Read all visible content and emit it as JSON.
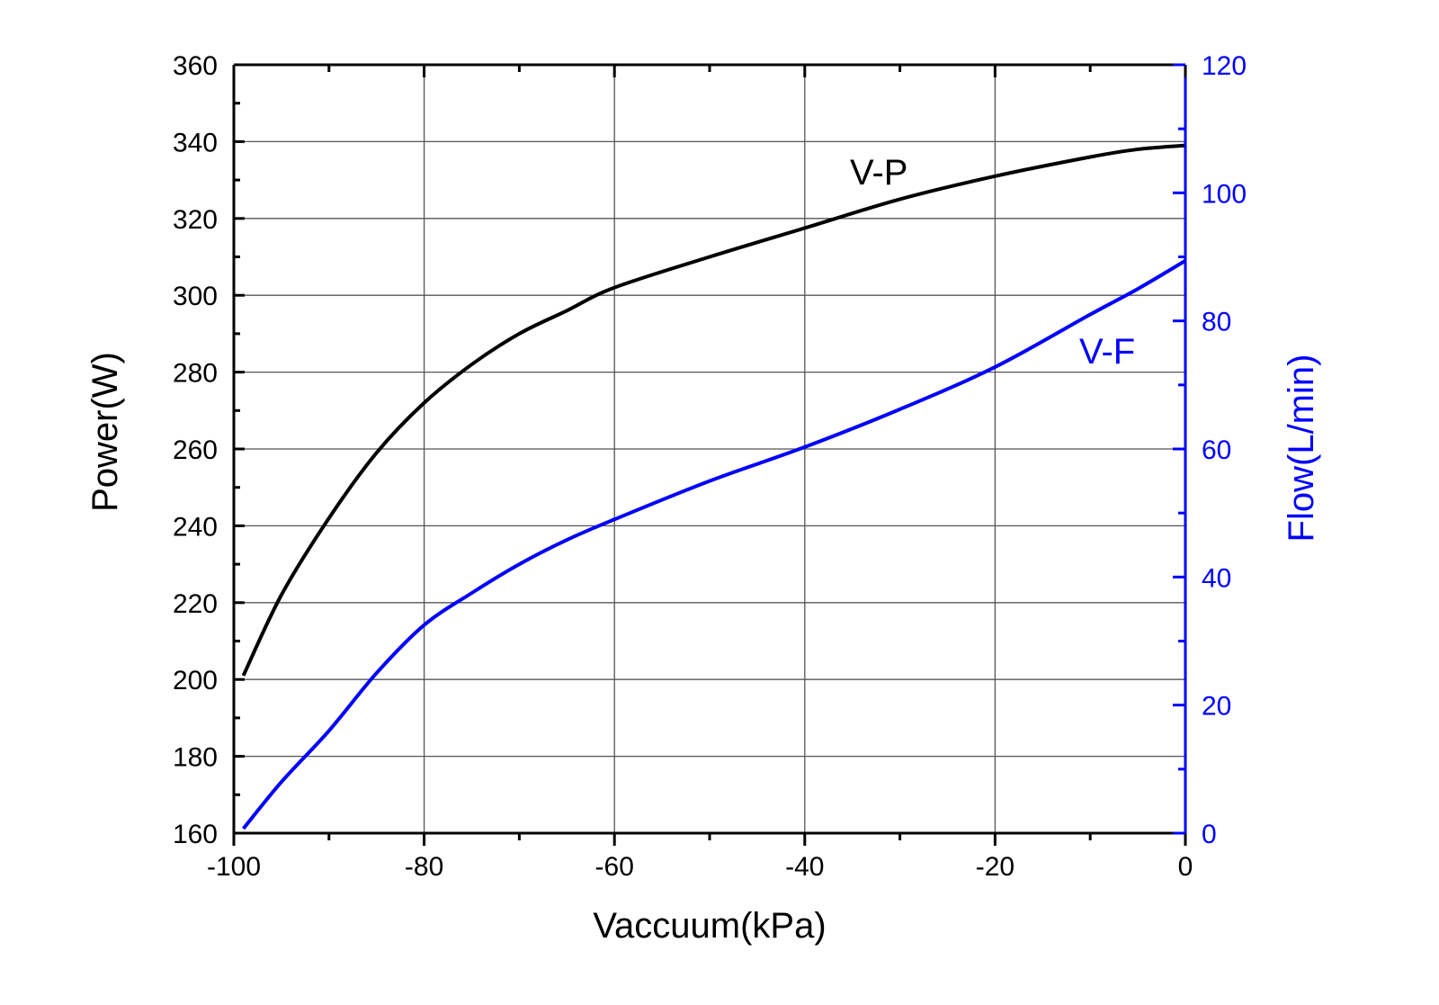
{
  "chart_data": {
    "type": "line",
    "xlabel": "Vaccuum(kPa)",
    "ylabel": "Power(W)",
    "y2label": "Flow(L/min)",
    "xlim": [
      -100,
      0
    ],
    "ylim": [
      160,
      360
    ],
    "y2lim": [
      0,
      120
    ],
    "xticks": [
      -100,
      -80,
      -60,
      -40,
      -20,
      0
    ],
    "yticks": [
      160,
      180,
      200,
      220,
      240,
      260,
      280,
      300,
      320,
      340,
      360
    ],
    "y2ticks": [
      0,
      20,
      40,
      60,
      80,
      100,
      120
    ],
    "grid": true,
    "colors": {
      "left": "#000000",
      "right": "#0000ff",
      "grid": "#555555"
    },
    "series": [
      {
        "name": "V-P",
        "axis": "left",
        "color": "#000000",
        "x": [
          -99,
          -95,
          -90,
          -85,
          -80,
          -75,
          -70,
          -65,
          -60,
          -50,
          -40,
          -30,
          -20,
          -10,
          -5,
          0
        ],
        "y": [
          201,
          222,
          242,
          259,
          272,
          282,
          290,
          296,
          302,
          310,
          317.5,
          325,
          331,
          336,
          338,
          339
        ]
      },
      {
        "name": "V-F",
        "axis": "right",
        "color": "#0000ff",
        "x": [
          -99,
          -95,
          -90,
          -85,
          -80,
          -75,
          -70,
          -65,
          -60,
          -50,
          -40,
          -30,
          -20,
          -10,
          -5,
          0
        ],
        "y": [
          0.7,
          8,
          16,
          25,
          32.5,
          37.5,
          42,
          45.8,
          49,
          55,
          60.3,
          66.2,
          72.8,
          81,
          85,
          89.4
        ]
      }
    ],
    "annotations": [
      {
        "text": "V-P",
        "x": -35,
        "y": 335,
        "axis": "left"
      },
      {
        "text": "V-F",
        "x": -8,
        "y": 75,
        "axis": "right"
      }
    ]
  }
}
